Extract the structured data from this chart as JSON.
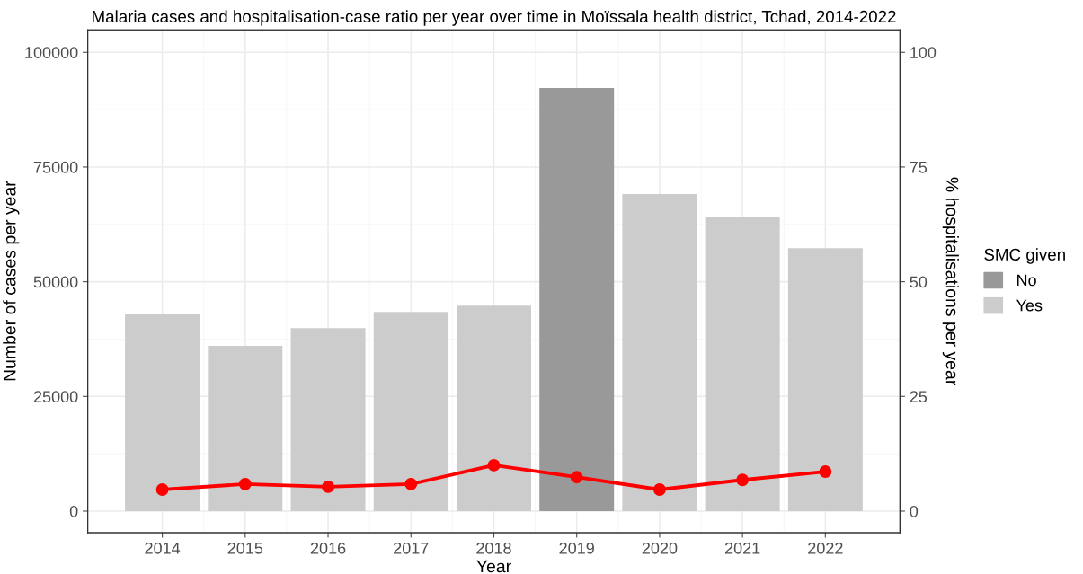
{
  "chart_data": {
    "type": "bar",
    "title": "Malaria cases and hospitalisation-case ratio per year over time in Moïssala health district, Tchad, 2014-2022",
    "xlabel": "Year",
    "ylabel": "Number of cases per year",
    "y2label": "% hospitalisations per year",
    "legend_title": "SMC given",
    "series": [
      {
        "name": "No",
        "color": "#999999",
        "x": [
          2019
        ],
        "values": [
          92200
        ]
      },
      {
        "name": "Yes",
        "color": "#cccccc",
        "x": [
          2014,
          2015,
          2016,
          2017,
          2018,
          2020,
          2021,
          2022
        ],
        "values": [
          42900,
          36000,
          39900,
          43400,
          44800,
          69100,
          64000,
          57300
        ]
      },
      {
        "type": "line",
        "axis": "y2",
        "color": "#ff0000",
        "marker": "circle",
        "line_style": "solid",
        "x": [
          2014,
          2015,
          2016,
          2017,
          2018,
          2019,
          2020,
          2021,
          2022
        ],
        "values": [
          4.7,
          5.9,
          5.3,
          5.9,
          10.0,
          7.4,
          4.7,
          6.8,
          8.6
        ]
      }
    ],
    "xlim": [
      2013.1,
      2022.9
    ],
    "xticks": [
      2014,
      2015,
      2016,
      2017,
      2018,
      2019,
      2020,
      2021,
      2022
    ],
    "ylim": [
      -4700,
      104900
    ],
    "yticks": [
      0,
      25000,
      50000,
      75000,
      100000
    ],
    "y2lim": [
      -4.7,
      104.9
    ],
    "y2ticks": [
      0,
      25,
      50,
      75,
      100
    ],
    "grid": true,
    "legend": "right"
  }
}
